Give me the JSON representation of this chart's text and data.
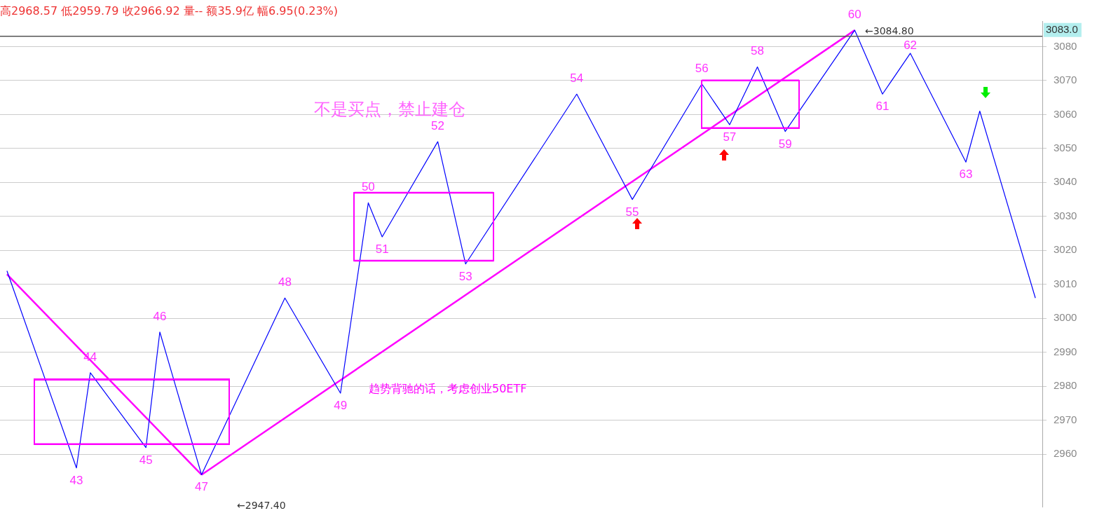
{
  "chart_data": {
    "type": "line",
    "categories": [
      null,
      null,
      null,
      null,
      null,
      null,
      null,
      null,
      null,
      null,
      null,
      null,
      null,
      null,
      null,
      null,
      null,
      null,
      null,
      null,
      null,
      null,
      null,
      null,
      null,
      null,
      null,
      null,
      null,
      null,
      null,
      null,
      null,
      null,
      null,
      null,
      null,
      null,
      null,
      null,
      null,
      null,
      null,
      null,
      null,
      null,
      null,
      null,
      null,
      null,
      null,
      null,
      null,
      null,
      null,
      null,
      null,
      null,
      null,
      null,
      null,
      null,
      null,
      null,
      null,
      null,
      null,
      null,
      null,
      null,
      null,
      null,
      null,
      null,
      null
    ],
    "series": [
      {
        "color": "#0000ff",
        "values": [
          3014,
          null,
          null,
          null,
          null,
          2956,
          2984,
          null,
          null,
          null,
          2962,
          2996,
          null,
          null,
          2954,
          null,
          null,
          null,
          null,
          null,
          3006,
          null,
          null,
          null,
          2978,
          null,
          3034,
          3024,
          null,
          null,
          null,
          3052,
          null,
          3016,
          null,
          null,
          null,
          null,
          null,
          null,
          null,
          3066,
          null,
          null,
          null,
          3035,
          null,
          null,
          null,
          null,
          3069,
          null,
          3057,
          null,
          3074,
          null,
          3055,
          null,
          null,
          null,
          null,
          3084.8,
          null,
          3066,
          null,
          3078,
          null,
          null,
          null,
          3046,
          3061,
          null,
          null,
          null,
          3006
        ]
      },
      {
        "color": "#ff00ff",
        "values": [
          3013,
          null,
          null,
          null,
          null,
          null,
          null,
          null,
          null,
          null,
          null,
          null,
          null,
          null,
          2954,
          null,
          null,
          null,
          null,
          null,
          null,
          null,
          null,
          null,
          null,
          null,
          null,
          null,
          null,
          null,
          null,
          null,
          null,
          null,
          null,
          null,
          null,
          null,
          null,
          null,
          null,
          null,
          null,
          null,
          null,
          null,
          null,
          null,
          null,
          null,
          null,
          null,
          null,
          null,
          null,
          null,
          null,
          null,
          null,
          null,
          null,
          null,
          null,
          null,
          null,
          null,
          null,
          null,
          null,
          null,
          null,
          null,
          null,
          null,
          null
        ]
      },
      {
        "color": "#ff00ff",
        "values": [
          null,
          null,
          null,
          null,
          null,
          null,
          null,
          null,
          null,
          null,
          null,
          null,
          null,
          null,
          2954,
          null,
          null,
          null,
          null,
          null,
          null,
          null,
          null,
          null,
          null,
          null,
          null,
          null,
          null,
          null,
          null,
          null,
          null,
          null,
          null,
          null,
          null,
          null,
          null,
          null,
          null,
          null,
          null,
          null,
          null,
          null,
          null,
          null,
          null,
          null,
          null,
          null,
          null,
          null,
          null,
          null,
          null,
          null,
          null,
          null,
          null,
          3084.8,
          null,
          null,
          null,
          null,
          null,
          null,
          null,
          null,
          null,
          null,
          null,
          null,
          null
        ]
      },
      {
        "color": "#ff00ff",
        "values": [
          null,
          null,
          2982,
          2982,
          2982,
          2982,
          2982,
          2982,
          2982,
          2982,
          2982,
          2982,
          2982,
          2982,
          2982,
          2982,
          2982,
          null,
          null,
          null,
          null,
          null,
          null,
          null,
          null,
          3037,
          3037,
          3037,
          3037,
          3037,
          3037,
          3037,
          3037,
          3037,
          3037,
          3037,
          null,
          null,
          null,
          null,
          null,
          null,
          null,
          null,
          null,
          null,
          null,
          null,
          null,
          null,
          3070,
          3070,
          3070,
          3070,
          3070,
          3070,
          3070,
          3070,
          null,
          null,
          null,
          null,
          null,
          null,
          null,
          null,
          null,
          null,
          null,
          null,
          null,
          null,
          null,
          null,
          null
        ]
      },
      {
        "color": "#ff00ff",
        "values": [
          null,
          null,
          2963,
          2963,
          2963,
          2963,
          2963,
          2963,
          2963,
          2963,
          2963,
          2963,
          2963,
          2963,
          2963,
          2963,
          2963,
          null,
          null,
          null,
          null,
          null,
          null,
          null,
          null,
          3017,
          3017,
          3017,
          3017,
          3017,
          3017,
          3017,
          3017,
          3017,
          3017,
          3017,
          null,
          null,
          null,
          null,
          null,
          null,
          null,
          null,
          null,
          null,
          null,
          null,
          null,
          null,
          3056,
          3056,
          3056,
          3056,
          3056,
          3056,
          3056,
          3056,
          null,
          null,
          null,
          null,
          null,
          null,
          null,
          null,
          null,
          null,
          null,
          null,
          null,
          null,
          null,
          null,
          null
        ]
      }
    ],
    "ylim": [
      2944.6,
      3087.5
    ],
    "yticks": [
      2960,
      2970,
      2980,
      2990,
      3000,
      3010,
      3020,
      3030,
      3040,
      3050,
      3060,
      3070,
      3080
    ],
    "ref_lines": [
      {
        "axis": "y",
        "value": 3083,
        "label": "3083.0",
        "color": "#555555"
      }
    ],
    "annotations": [
      "高2968.57 低2959.79 收2966.92 量-- 额35.9亿 幅6.95(0.23%)",
      "不是买点，禁止建仓",
      "趋势背驰的话，考虑创业50ETF",
      "←3084.80",
      "←2947.40",
      {
        "text": "43",
        "y": 2956
      },
      {
        "text": "44",
        "y": 2984
      },
      {
        "text": "45",
        "y": 2962
      },
      {
        "text": "46",
        "y": 2996
      },
      {
        "text": "47",
        "y": 2954
      },
      {
        "text": "48",
        "y": 3006
      },
      {
        "text": "49",
        "y": 2978
      },
      {
        "text": "50",
        "y": 3034
      },
      {
        "text": "51",
        "y": 3024
      },
      {
        "text": "52",
        "y": 3052
      },
      {
        "text": "53",
        "y": 3016
      },
      {
        "text": "54",
        "y": 3066
      },
      {
        "text": "55",
        "y": 3035
      },
      {
        "text": "56",
        "y": 3069
      },
      {
        "text": "57",
        "y": 3057
      },
      {
        "text": "58",
        "y": 3074
      },
      {
        "text": "59",
        "y": 3055
      },
      {
        "text": "60",
        "y": 3084.8
      },
      {
        "text": "61",
        "y": 3066
      },
      {
        "text": "62",
        "y": 3078
      },
      {
        "text": "63",
        "y": 3046
      }
    ],
    "grid": "y",
    "tick_labels": "y",
    "marker": "none",
    "legend": false
  }
}
